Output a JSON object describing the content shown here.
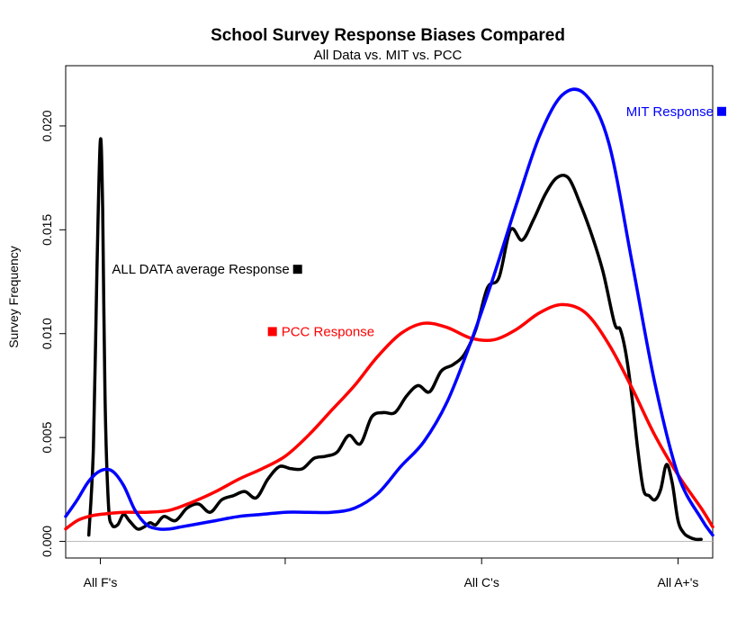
{
  "chart_data": {
    "type": "line",
    "title": "School Survey Response Biases Compared",
    "subtitle": "All Data vs. MIT vs. PCC",
    "ylabel": "Survey Frequency",
    "xlabel": "",
    "x_ticks": [
      {
        "x": 0,
        "label": "All F's"
      },
      {
        "x": 1.6,
        "label": ""
      },
      {
        "x": 3.3,
        "label": "All C's"
      },
      {
        "x": 5,
        "label": "All A+'s"
      }
    ],
    "xlim": [
      -0.3,
      5.3
    ],
    "ylim": [
      -0.0008,
      0.0229
    ],
    "y_ticks": [
      0.0,
      0.005,
      0.01,
      0.015,
      0.02
    ],
    "y_tick_labels": [
      "0.000",
      "0.005",
      "0.010",
      "0.015",
      "0.020"
    ],
    "grid": false,
    "series": [
      {
        "name": "MIT Response",
        "color": "#0000ff",
        "x": [
          -0.3,
          -0.2,
          -0.1,
          0.0,
          0.1,
          0.2,
          0.3,
          0.4,
          0.5,
          0.6,
          0.7,
          0.8,
          1.0,
          1.2,
          1.4,
          1.6,
          1.8,
          2.0,
          2.2,
          2.4,
          2.6,
          2.8,
          3.0,
          3.2,
          3.4,
          3.6,
          3.8,
          4.0,
          4.2,
          4.4,
          4.6,
          4.8,
          5.0,
          5.2,
          5.3
        ],
        "y": [
          0.0012,
          0.002,
          0.0029,
          0.0034,
          0.0034,
          0.0027,
          0.0015,
          0.0008,
          0.0006,
          0.0006,
          0.0007,
          0.0008,
          0.001,
          0.0012,
          0.0013,
          0.0014,
          0.0014,
          0.0014,
          0.0016,
          0.0023,
          0.0036,
          0.0048,
          0.0067,
          0.0095,
          0.0127,
          0.0162,
          0.0195,
          0.0215,
          0.0215,
          0.0192,
          0.0135,
          0.0076,
          0.0032,
          0.0011,
          0.0003
        ]
      },
      {
        "name": "PCC Response",
        "color": "#ff0000",
        "x": [
          -0.3,
          -0.2,
          -0.1,
          0.0,
          0.2,
          0.4,
          0.6,
          0.8,
          1.0,
          1.2,
          1.4,
          1.6,
          1.8,
          2.0,
          2.2,
          2.4,
          2.6,
          2.8,
          3.0,
          3.2,
          3.4,
          3.6,
          3.8,
          4.0,
          4.2,
          4.4,
          4.6,
          4.8,
          5.0,
          5.2,
          5.3
        ],
        "y": [
          0.0006,
          0.001,
          0.0012,
          0.0013,
          0.0014,
          0.0014,
          0.0015,
          0.0019,
          0.0024,
          0.003,
          0.0035,
          0.0041,
          0.0051,
          0.0063,
          0.0075,
          0.0089,
          0.01,
          0.0105,
          0.0103,
          0.0098,
          0.0097,
          0.0102,
          0.011,
          0.0114,
          0.011,
          0.0095,
          0.0074,
          0.0051,
          0.0032,
          0.0016,
          0.0007
        ]
      },
      {
        "name": "ALL DATA average Response",
        "color": "#000000",
        "x": [
          -0.1,
          -0.06,
          -0.03,
          0.0,
          0.02,
          0.04,
          0.07,
          0.1,
          0.15,
          0.2,
          0.25,
          0.32,
          0.38,
          0.43,
          0.48,
          0.55,
          0.65,
          0.75,
          0.85,
          0.95,
          1.05,
          1.15,
          1.25,
          1.35,
          1.45,
          1.55,
          1.65,
          1.75,
          1.85,
          1.95,
          2.05,
          2.15,
          2.25,
          2.35,
          2.45,
          2.55,
          2.65,
          2.75,
          2.85,
          2.95,
          3.05,
          3.15,
          3.25,
          3.35,
          3.45,
          3.55,
          3.65,
          3.75,
          3.85,
          3.95,
          4.05,
          4.15,
          4.25,
          4.35,
          4.45,
          4.5,
          4.55,
          4.6,
          4.65,
          4.7,
          4.75,
          4.8,
          4.85,
          4.9,
          4.95,
          5.0,
          5.05,
          5.1,
          5.15,
          5.2
        ],
        "y": [
          0.0003,
          0.0045,
          0.013,
          0.0193,
          0.016,
          0.007,
          0.0018,
          0.0008,
          0.0008,
          0.0013,
          0.001,
          0.0006,
          0.0007,
          0.0009,
          0.0008,
          0.0012,
          0.001,
          0.0016,
          0.0018,
          0.0014,
          0.002,
          0.0022,
          0.0024,
          0.0021,
          0.003,
          0.0036,
          0.0035,
          0.0035,
          0.004,
          0.0041,
          0.0043,
          0.0051,
          0.0047,
          0.006,
          0.0062,
          0.0062,
          0.007,
          0.0075,
          0.0072,
          0.0082,
          0.0085,
          0.009,
          0.0102,
          0.0122,
          0.0127,
          0.015,
          0.0145,
          0.0155,
          0.0167,
          0.0175,
          0.0175,
          0.0163,
          0.0148,
          0.013,
          0.0105,
          0.0102,
          0.009,
          0.007,
          0.0045,
          0.0025,
          0.0022,
          0.002,
          0.0025,
          0.0037,
          0.0028,
          0.001,
          0.0004,
          0.0002,
          0.0001,
          0.0001
        ]
      }
    ],
    "annotations": [
      {
        "text": "MIT Response",
        "color": "#0000ff",
        "x": 4.55,
        "y": 0.0207,
        "marker_side": "right"
      },
      {
        "text": "ALL DATA average Response",
        "color": "#000000",
        "x": 0.1,
        "y": 0.0131,
        "marker_side": "right"
      },
      {
        "text": "PCC Response",
        "color": "#ff0000",
        "x": 1.45,
        "y": 0.0101,
        "marker_side": "left"
      }
    ]
  }
}
